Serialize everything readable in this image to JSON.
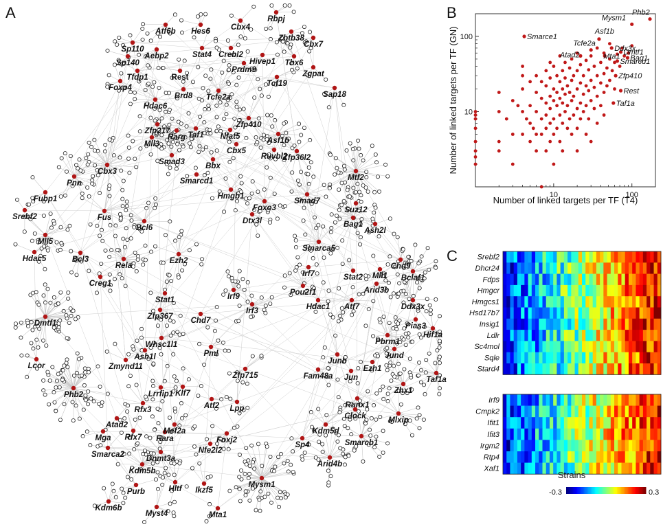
{
  "panels": {
    "a": "A",
    "b": "B",
    "c": "C"
  },
  "network": {
    "tfs": [
      {
        "label": "Rbpj",
        "x": 402,
        "y": 18
      },
      {
        "label": "Cbx4",
        "x": 350,
        "y": 30
      },
      {
        "label": "Atf6b",
        "x": 241,
        "y": 36
      },
      {
        "label": "Hes6",
        "x": 292,
        "y": 36
      },
      {
        "label": "Zbtb38",
        "x": 424,
        "y": 46
      },
      {
        "label": "Cbx7",
        "x": 456,
        "y": 55
      },
      {
        "label": "Sp110",
        "x": 193,
        "y": 62
      },
      {
        "label": "Stat4",
        "x": 294,
        "y": 70
      },
      {
        "label": "Crebl2",
        "x": 336,
        "y": 70
      },
      {
        "label": "Aebp2",
        "x": 228,
        "y": 72
      },
      {
        "label": "Hivep1",
        "x": 382,
        "y": 80
      },
      {
        "label": "Tbx6",
        "x": 428,
        "y": 82
      },
      {
        "label": "Sp140",
        "x": 186,
        "y": 82
      },
      {
        "label": "Prdm9",
        "x": 355,
        "y": 92
      },
      {
        "label": "Zgpat",
        "x": 456,
        "y": 98
      },
      {
        "label": "Tfdp1",
        "x": 200,
        "y": 103
      },
      {
        "label": "Rest",
        "x": 262,
        "y": 103
      },
      {
        "label": "Foxp4",
        "x": 175,
        "y": 118
      },
      {
        "label": "Tcf19",
        "x": 403,
        "y": 112
      },
      {
        "label": "Sap18",
        "x": 487,
        "y": 128
      },
      {
        "label": "Brd8",
        "x": 267,
        "y": 130
      },
      {
        "label": "Tcfe2a",
        "x": 318,
        "y": 132
      },
      {
        "label": "Hdac6",
        "x": 226,
        "y": 145
      },
      {
        "label": "Zfp410",
        "x": 362,
        "y": 172
      },
      {
        "label": "Zfp217",
        "x": 229,
        "y": 181
      },
      {
        "label": "Rarg",
        "x": 257,
        "y": 190
      },
      {
        "label": "Taf1",
        "x": 285,
        "y": 187
      },
      {
        "label": "Nfat5",
        "x": 335,
        "y": 189
      },
      {
        "label": "Asf1b",
        "x": 405,
        "y": 195
      },
      {
        "label": "Mll3",
        "x": 221,
        "y": 200
      },
      {
        "label": "Cbx5",
        "x": 344,
        "y": 210
      },
      {
        "label": "Ruvbl2",
        "x": 399,
        "y": 218
      },
      {
        "label": "Zfp36l2",
        "x": 432,
        "y": 220
      },
      {
        "label": "Smad3",
        "x": 250,
        "y": 226
      },
      {
        "label": "Bbx",
        "x": 310,
        "y": 232
      },
      {
        "label": "Cbx3",
        "x": 156,
        "y": 240
      },
      {
        "label": "Mtf2",
        "x": 518,
        "y": 249
      },
      {
        "label": "Pnn",
        "x": 108,
        "y": 257
      },
      {
        "label": "Smarcd1",
        "x": 286,
        "y": 254
      },
      {
        "label": "Hmgb1",
        "x": 336,
        "y": 276
      },
      {
        "label": "Fubp1",
        "x": 66,
        "y": 280
      },
      {
        "label": "Foxo3",
        "x": 385,
        "y": 293
      },
      {
        "label": "Smad7",
        "x": 447,
        "y": 283
      },
      {
        "label": "Suz12",
        "x": 518,
        "y": 296
      },
      {
        "label": "Srebf2",
        "x": 36,
        "y": 306
      },
      {
        "label": "Fus",
        "x": 152,
        "y": 307
      },
      {
        "label": "Dtx3l",
        "x": 367,
        "y": 312
      },
      {
        "label": "Bag1",
        "x": 514,
        "y": 317
      },
      {
        "label": "Ash2l",
        "x": 546,
        "y": 326
      },
      {
        "label": "Bcl6",
        "x": 210,
        "y": 322
      },
      {
        "label": "Mll5",
        "x": 66,
        "y": 342
      },
      {
        "label": "Smarca5",
        "x": 464,
        "y": 352
      },
      {
        "label": "Hdac5",
        "x": 50,
        "y": 367
      },
      {
        "label": "Bcl3",
        "x": 117,
        "y": 368
      },
      {
        "label": "Rela",
        "x": 180,
        "y": 377
      },
      {
        "label": "Ezh2",
        "x": 260,
        "y": 370
      },
      {
        "label": "Chd9",
        "x": 583,
        "y": 378
      },
      {
        "label": "Mll1",
        "x": 553,
        "y": 392
      },
      {
        "label": "Bclaf1",
        "x": 601,
        "y": 395
      },
      {
        "label": "Irf7",
        "x": 449,
        "y": 389
      },
      {
        "label": "Stat2",
        "x": 514,
        "y": 394
      },
      {
        "label": "Creg1",
        "x": 146,
        "y": 403
      },
      {
        "label": "Arid3b",
        "x": 548,
        "y": 413
      },
      {
        "label": "Irf9",
        "x": 340,
        "y": 422
      },
      {
        "label": "Pou2f1",
        "x": 441,
        "y": 416
      },
      {
        "label": "Stat1",
        "x": 240,
        "y": 427
      },
      {
        "label": "Irf3",
        "x": 367,
        "y": 443
      },
      {
        "label": "Ddx3x",
        "x": 601,
        "y": 437
      },
      {
        "label": "Hdac1",
        "x": 463,
        "y": 437
      },
      {
        "label": "Atf7",
        "x": 512,
        "y": 437
      },
      {
        "label": "Dmtf1",
        "x": 66,
        "y": 461
      },
      {
        "label": "Chd7",
        "x": 292,
        "y": 457
      },
      {
        "label": "Zfp367",
        "x": 233,
        "y": 451
      },
      {
        "label": "Pias3",
        "x": 605,
        "y": 465
      },
      {
        "label": "Hif1a",
        "x": 630,
        "y": 478
      },
      {
        "label": "Whsc1l1",
        "x": 235,
        "y": 492
      },
      {
        "label": "Pml",
        "x": 307,
        "y": 505
      },
      {
        "label": "Pbrm1",
        "x": 564,
        "y": 488
      },
      {
        "label": "Ash1l",
        "x": 211,
        "y": 510
      },
      {
        "label": "Jund",
        "x": 574,
        "y": 508
      },
      {
        "label": "Zmynd11",
        "x": 183,
        "y": 524
      },
      {
        "label": "Junb",
        "x": 491,
        "y": 516
      },
      {
        "label": "Lcor",
        "x": 53,
        "y": 523
      },
      {
        "label": "Zfp715",
        "x": 357,
        "y": 537
      },
      {
        "label": "Ezh1",
        "x": 542,
        "y": 527
      },
      {
        "label": "Taf1a",
        "x": 635,
        "y": 543
      },
      {
        "label": "Fam48a",
        "x": 463,
        "y": 538
      },
      {
        "label": "Jun",
        "x": 511,
        "y": 540
      },
      {
        "label": "Zhx1",
        "x": 587,
        "y": 559
      },
      {
        "label": "Phb2",
        "x": 107,
        "y": 565
      },
      {
        "label": "Lrrfip1",
        "x": 234,
        "y": 564
      },
      {
        "label": "Klf7",
        "x": 266,
        "y": 563
      },
      {
        "label": "Rfx3",
        "x": 208,
        "y": 587
      },
      {
        "label": "Atf2",
        "x": 308,
        "y": 581
      },
      {
        "label": "Lpp",
        "x": 345,
        "y": 585
      },
      {
        "label": "Runx1",
        "x": 520,
        "y": 580
      },
      {
        "label": "Clock",
        "x": 517,
        "y": 596
      },
      {
        "label": "Atad2",
        "x": 170,
        "y": 609
      },
      {
        "label": "Mga",
        "x": 150,
        "y": 628
      },
      {
        "label": "Rfx7",
        "x": 194,
        "y": 627
      },
      {
        "label": "Mef2a",
        "x": 254,
        "y": 618
      },
      {
        "label": "Rara",
        "x": 240,
        "y": 629
      },
      {
        "label": "Foxj2",
        "x": 330,
        "y": 631
      },
      {
        "label": "Nfe2l2",
        "x": 306,
        "y": 646
      },
      {
        "label": "Mlxip",
        "x": 580,
        "y": 602
      },
      {
        "label": "Kdm5d",
        "x": 474,
        "y": 618
      },
      {
        "label": "Sp4",
        "x": 440,
        "y": 638
      },
      {
        "label": "Smarcb1",
        "x": 526,
        "y": 635
      },
      {
        "label": "Smarca2",
        "x": 157,
        "y": 652
      },
      {
        "label": "Dnmt3a",
        "x": 234,
        "y": 658
      },
      {
        "label": "Arid4b",
        "x": 480,
        "y": 666
      },
      {
        "label": "Kdm5b",
        "x": 207,
        "y": 676
      },
      {
        "label": "Hltf",
        "x": 255,
        "y": 702
      },
      {
        "label": "Mysm1",
        "x": 381,
        "y": 696
      },
      {
        "label": "Purb",
        "x": 198,
        "y": 706
      },
      {
        "label": "Ikzf5",
        "x": 297,
        "y": 704
      },
      {
        "label": "Kdm6b",
        "x": 158,
        "y": 730
      },
      {
        "label": "Myst4",
        "x": 228,
        "y": 738
      },
      {
        "label": "Mta1",
        "x": 317,
        "y": 740
      }
    ]
  },
  "chart_data": {
    "type": "scatter",
    "xlabel": "Number of linked targets per TF (T4)",
    "ylabel": "Number of linked targets per TF (GN)",
    "scale": "log-log",
    "xlim": [
      1,
      200
    ],
    "ylim": [
      1,
      200
    ],
    "xticks": [
      {
        "v": 10,
        "label": "10"
      },
      {
        "v": 100,
        "label": "100"
      }
    ],
    "yticks": [
      {
        "v": 10,
        "label": "10"
      },
      {
        "v": 100,
        "label": "100"
      }
    ],
    "color": "#c01818",
    "labeled_points": [
      {
        "name": "Phb2",
        "x": 170,
        "y": 170
      },
      {
        "name": "Mysm1",
        "x": 100,
        "y": 145
      },
      {
        "name": "Smarce1",
        "x": 4.2,
        "y": 100
      },
      {
        "name": "Asf1b",
        "x": 38,
        "y": 92
      },
      {
        "name": "Ddx3x",
        "x": 55,
        "y": 70
      },
      {
        "name": "Tcfe2a",
        "x": 30,
        "y": 66
      },
      {
        "name": "Dmtf1",
        "x": 72,
        "y": 62
      },
      {
        "name": "Atad2",
        "x": 22,
        "y": 55
      },
      {
        "name": "Mta1",
        "x": 45,
        "y": 55
      },
      {
        "name": "Bag1",
        "x": 88,
        "y": 52
      },
      {
        "name": "Smarcd1",
        "x": 65,
        "y": 47
      },
      {
        "name": "Zfp410",
        "x": 62,
        "y": 30
      },
      {
        "name": "Rest",
        "x": 72,
        "y": 19
      },
      {
        "name": "Taf1a",
        "x": 58,
        "y": 13
      }
    ],
    "points": [
      [
        1,
        10
      ],
      [
        1,
        9
      ],
      [
        1,
        6
      ],
      [
        1,
        4
      ],
      [
        1,
        3
      ],
      [
        1,
        2
      ],
      [
        1,
        2.5
      ],
      [
        1,
        8
      ],
      [
        2,
        18
      ],
      [
        2,
        10
      ],
      [
        2,
        4
      ],
      [
        2,
        3
      ],
      [
        2.5,
        8
      ],
      [
        3,
        14
      ],
      [
        3,
        5
      ],
      [
        3,
        2
      ],
      [
        3.5,
        12
      ],
      [
        4,
        40
      ],
      [
        4,
        30
      ],
      [
        4,
        20
      ],
      [
        4,
        10
      ],
      [
        4,
        5
      ],
      [
        4.5,
        8
      ],
      [
        5,
        25
      ],
      [
        5,
        12
      ],
      [
        5,
        7
      ],
      [
        5,
        4
      ],
      [
        5.5,
        6
      ],
      [
        6,
        30
      ],
      [
        6,
        18
      ],
      [
        6,
        10
      ],
      [
        6,
        5
      ],
      [
        6,
        3
      ],
      [
        7,
        25
      ],
      [
        7,
        15
      ],
      [
        7,
        8
      ],
      [
        7,
        5
      ],
      [
        7,
        1
      ],
      [
        8,
        35
      ],
      [
        8,
        22
      ],
      [
        8,
        13
      ],
      [
        8,
        9
      ],
      [
        8,
        6
      ],
      [
        8,
        3
      ],
      [
        9,
        45
      ],
      [
        9,
        28
      ],
      [
        9,
        16
      ],
      [
        9,
        11
      ],
      [
        9,
        7
      ],
      [
        9,
        4
      ],
      [
        10,
        40
      ],
      [
        10,
        20
      ],
      [
        10,
        14
      ],
      [
        10,
        8
      ],
      [
        10,
        5
      ],
      [
        10,
        2
      ],
      [
        11,
        30
      ],
      [
        11,
        18
      ],
      [
        11,
        12
      ],
      [
        11,
        6
      ],
      [
        12,
        55
      ],
      [
        12,
        25
      ],
      [
        12,
        15
      ],
      [
        12,
        9
      ],
      [
        12,
        4
      ],
      [
        13,
        35
      ],
      [
        13,
        20
      ],
      [
        13,
        13
      ],
      [
        13,
        7
      ],
      [
        13,
        3
      ],
      [
        14,
        45
      ],
      [
        14,
        28
      ],
      [
        14,
        17
      ],
      [
        14,
        10
      ],
      [
        15,
        22
      ],
      [
        15,
        12
      ],
      [
        15,
        6
      ],
      [
        16,
        38
      ],
      [
        16,
        18
      ],
      [
        16,
        8
      ],
      [
        17,
        50
      ],
      [
        17,
        26
      ],
      [
        17,
        14
      ],
      [
        17,
        5
      ],
      [
        18,
        30
      ],
      [
        18,
        16
      ],
      [
        18,
        9
      ],
      [
        20,
        60
      ],
      [
        20,
        35
      ],
      [
        20,
        20
      ],
      [
        20,
        11
      ],
      [
        20,
        6
      ],
      [
        20,
        3
      ],
      [
        22,
        42
      ],
      [
        22,
        24
      ],
      [
        22,
        13
      ],
      [
        22,
        8
      ],
      [
        24,
        30
      ],
      [
        24,
        17
      ],
      [
        24,
        10
      ],
      [
        26,
        48
      ],
      [
        26,
        22
      ],
      [
        26,
        12
      ],
      [
        26,
        5
      ],
      [
        28,
        36
      ],
      [
        28,
        19
      ],
      [
        28,
        8
      ],
      [
        30,
        55
      ],
      [
        30,
        26
      ],
      [
        30,
        14
      ],
      [
        30,
        4
      ],
      [
        33,
        40
      ],
      [
        33,
        21
      ],
      [
        33,
        11
      ],
      [
        36,
        70
      ],
      [
        36,
        30
      ],
      [
        36,
        16
      ],
      [
        36,
        7
      ],
      [
        40,
        45
      ],
      [
        40,
        24
      ],
      [
        40,
        12
      ],
      [
        44,
        60
      ],
      [
        44,
        32
      ],
      [
        44,
        18
      ],
      [
        44,
        9
      ],
      [
        48,
        38
      ],
      [
        48,
        22
      ],
      [
        52,
        80
      ],
      [
        52,
        50
      ],
      [
        52,
        26
      ],
      [
        56,
        35
      ],
      [
        60,
        45
      ],
      [
        60,
        20
      ],
      [
        65,
        58
      ],
      [
        70,
        40
      ],
      [
        75,
        70
      ],
      [
        80,
        55
      ],
      [
        90,
        60
      ],
      [
        100,
        75
      ]
    ]
  },
  "heatmaps": {
    "top_genes": [
      "Srebf2",
      "Dhcr24",
      "Fdps",
      "Hmgcr",
      "Hmgcs1",
      "Hsd17b7",
      "Insig1",
      "Ldlr",
      "Sc4mol",
      "Sqle",
      "Stard4"
    ],
    "bottom_genes": [
      "Irf9",
      "Cmpk2",
      "Ifit1",
      "Ifit3",
      "Irgm2",
      "Rtp4",
      "Xaf1"
    ],
    "xlabel": "Strains",
    "colorbar_min": "-0.3",
    "colorbar_max": "0.3"
  }
}
